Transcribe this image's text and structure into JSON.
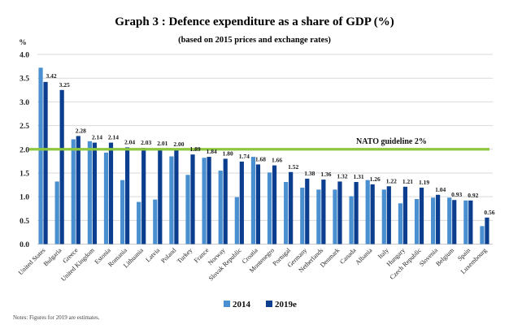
{
  "chart_data": {
    "type": "bar",
    "title": "Graph 3 : Defence expenditure as a share of GDP (%)",
    "subtitle": "(based on 2015 prices and exchange rates)",
    "ylabel": "%",
    "xlabel": "",
    "ylim": [
      0,
      4.0
    ],
    "yticks": [
      "0.0",
      "0.5",
      "1.0",
      "1.5",
      "2.0",
      "2.5",
      "3.0",
      "3.5",
      "4.0"
    ],
    "ytick_values": [
      0,
      0.5,
      1.0,
      1.5,
      2.0,
      2.5,
      3.0,
      3.5,
      4.0
    ],
    "grid": true,
    "legend_position": "bottom-center",
    "categories": [
      "United States",
      "Bulgaria",
      "Greece",
      "United Kingdom",
      "Estonia",
      "Romania",
      "Lithuania",
      "Latvia",
      "Poland",
      "Turkey",
      "France",
      "Norway",
      "Slovak Republic",
      "Croatia",
      "Montenegro",
      "Portugal",
      "Germany",
      "Netherlands",
      "Denmark",
      "Canada",
      "Albania",
      "Italy",
      "Hungary",
      "Czech Republic",
      "Slovenia",
      "Belgium",
      "Spain",
      "Luxembourg"
    ],
    "series": [
      {
        "name": "2014",
        "color": "#4a8fd0",
        "values": [
          3.72,
          1.32,
          2.21,
          2.17,
          1.93,
          1.35,
          0.89,
          0.94,
          1.85,
          1.46,
          1.82,
          1.55,
          0.99,
          1.84,
          1.51,
          1.31,
          1.19,
          1.15,
          1.15,
          1.01,
          1.35,
          1.15,
          0.86,
          0.95,
          0.98,
          0.98,
          0.92,
          0.38
        ]
      },
      {
        "name": "2019e",
        "color": "#0b3e8e",
        "values": [
          3.42,
          3.25,
          2.28,
          2.14,
          2.14,
          2.04,
          2.03,
          2.01,
          2.0,
          1.89,
          1.84,
          1.8,
          1.74,
          1.68,
          1.66,
          1.52,
          1.38,
          1.36,
          1.32,
          1.31,
          1.26,
          1.22,
          1.21,
          1.19,
          1.04,
          0.93,
          0.92,
          0.56
        ],
        "labels": [
          "3.42",
          "3.25",
          "2.28",
          "2.14",
          "2.14",
          "2.04",
          "2.03",
          "2.01",
          "2.00",
          "1.89",
          "1.84",
          "1.80",
          "1.74",
          "1.68",
          "1.66",
          "1.52",
          "1.38",
          "1.36",
          "1.32",
          "1.31",
          "1.26",
          "1.22",
          "1.21",
          "1.19",
          "1.04",
          "0.93",
          "0.92",
          "0.56"
        ]
      }
    ],
    "reference_line": {
      "value": 2.0,
      "label": "NATO guideline 2%",
      "color": "#8dc63f"
    },
    "note": "Notes: Figures for 2019 are estimates."
  },
  "colors": {
    "grid": "#d9d9d9",
    "axis": "#c8c8c8"
  }
}
